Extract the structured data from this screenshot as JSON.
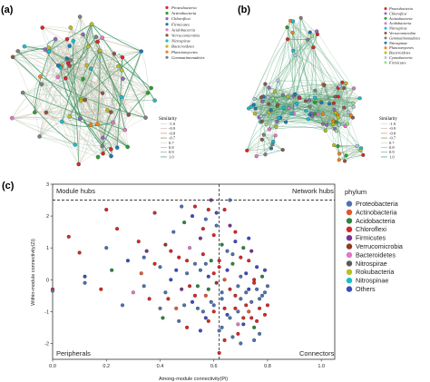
{
  "panels": {
    "a": {
      "label": "(a)"
    },
    "b": {
      "label": "(b)"
    },
    "c": {
      "label": "(c)"
    }
  },
  "network_a": {
    "legend": [
      "Proteobacteria",
      "Actinobacteria",
      "Chloroflexi",
      "Firmicutes",
      "Acidobacteria",
      "Verrucomicrobia",
      "Nitrospirae",
      "Bacteroidetes",
      "Planctomycetes",
      "Gemmatimonadetes"
    ],
    "legend_colors": [
      "#d62728",
      "#2ca02c",
      "#9467bd",
      "#1f77b4",
      "#e377c2",
      "#8c564b",
      "#17becf",
      "#bcbd22",
      "#ff7f0e",
      "#7f7f7f"
    ],
    "similarity_title": "Similarity",
    "similarity_values": [
      "-1.0",
      "-0.9",
      "-0.8",
      "-0.7",
      "0.7",
      "0.8",
      "0.9",
      "1.0"
    ]
  },
  "network_b": {
    "legend": [
      "Proteobacteria",
      "Chloroflexi",
      "Actinobacteria",
      "Acidobacteria",
      "Nitrospirae",
      "Verrucomicrobia",
      "Gemmatimonadetes",
      "Nitrospinae",
      "Planctomycetes",
      "Bacteroidetes",
      "Cyanobacteria",
      "Firmicutes"
    ],
    "legend_colors": [
      "#d62728",
      "#9467bd",
      "#2ca02c",
      "#e377c2",
      "#17becf",
      "#8c564b",
      "#7f7f7f",
      "#1f77b4",
      "#ff7f0e",
      "#bcbd22",
      "#aec7e8",
      "#98df8a"
    ],
    "similarity_title": "Similarity",
    "similarity_values": [
      "-1.0",
      "-0.9",
      "-0.8",
      "-0.7",
      "0.7",
      "0.8",
      "0.9",
      "1.0"
    ]
  },
  "edge_colors": {
    "positive": "#8fbfa2",
    "negative": "#c9b3a0",
    "strong": "#2e8b57"
  },
  "chart_data": {
    "type": "scatter",
    "xlabel": "Among-module connectivity(Pi)",
    "ylabel": "Within-module connectivity(Zi)",
    "xlim": [
      0.0,
      1.05
    ],
    "ylim": [
      -2.5,
      3.0
    ],
    "xticks": [
      "0.0",
      "0.2",
      "0.4",
      "0.6",
      "0.8",
      "1.0"
    ],
    "yticks": [
      "-2",
      "-1",
      "0",
      "1",
      "2",
      "3"
    ],
    "thresholds": {
      "pi": 0.62,
      "zi": 2.5
    },
    "quadrants": {
      "top_left": "Module hubs",
      "top_right": "Network hubs",
      "bottom_left": "Peripherals",
      "bottom_right": "Connectors"
    },
    "legend_title": "phylum",
    "legend_position": "right",
    "series": [
      {
        "name": "Proteobacteria",
        "color": "#4c72b0"
      },
      {
        "name": "Actinobacteria",
        "color": "#e4572e"
      },
      {
        "name": "Acidobacteria",
        "color": "#2e8540"
      },
      {
        "name": "Chloroflexi",
        "color": "#d62728"
      },
      {
        "name": "Firmicutes",
        "color": "#7b3294"
      },
      {
        "name": "Verrucomicrobia",
        "color": "#8c3b1e"
      },
      {
        "name": "Bacteroidetes",
        "color": "#e377c2"
      },
      {
        "name": "Nitrospirae",
        "color": "#5a5a5a"
      },
      {
        "name": "Rokubacteria",
        "color": "#bcbd22"
      },
      {
        "name": "Nitrospinae",
        "color": "#17becf"
      },
      {
        "name": "Others",
        "color": "#3b4cc0"
      }
    ],
    "points": [
      [
        0.0,
        -0.3,
        3
      ],
      [
        0.0,
        -0.35,
        0
      ],
      [
        0.06,
        1.35,
        3
      ],
      [
        0.1,
        0.85,
        3
      ],
      [
        0.12,
        -0.1,
        0
      ],
      [
        0.12,
        0.1,
        10
      ],
      [
        0.18,
        -0.3,
        3
      ],
      [
        0.2,
        2.2,
        3
      ],
      [
        0.2,
        1.0,
        0
      ],
      [
        0.22,
        0.3,
        2
      ],
      [
        0.24,
        1.6,
        3
      ],
      [
        0.26,
        -0.8,
        0
      ],
      [
        0.28,
        0.6,
        10
      ],
      [
        0.3,
        -0.4,
        6
      ],
      [
        0.32,
        1.2,
        3
      ],
      [
        0.33,
        0.2,
        1
      ],
      [
        0.34,
        -0.2,
        0
      ],
      [
        0.35,
        0.9,
        4
      ],
      [
        0.38,
        2.1,
        3
      ],
      [
        0.4,
        0.4,
        0
      ],
      [
        0.41,
        -1.2,
        2
      ],
      [
        0.42,
        1.1,
        5
      ],
      [
        0.43,
        -0.6,
        3
      ],
      [
        0.44,
        0.0,
        10
      ],
      [
        0.45,
        1.5,
        0
      ],
      [
        0.46,
        -0.9,
        1
      ],
      [
        0.47,
        0.7,
        3
      ],
      [
        0.48,
        -0.3,
        4
      ],
      [
        0.49,
        1.8,
        2
      ],
      [
        0.5,
        0.2,
        0
      ],
      [
        0.5,
        -1.5,
        3
      ],
      [
        0.51,
        1.0,
        6
      ],
      [
        0.52,
        -0.7,
        10
      ],
      [
        0.53,
        0.5,
        0
      ],
      [
        0.53,
        2.3,
        3
      ],
      [
        0.54,
        -0.2,
        2
      ],
      [
        0.55,
        1.3,
        4
      ],
      [
        0.56,
        -1.0,
        0
      ],
      [
        0.56,
        0.8,
        3
      ],
      [
        0.57,
        -0.5,
        1
      ],
      [
        0.57,
        1.9,
        0
      ],
      [
        0.58,
        0.1,
        10
      ],
      [
        0.58,
        -1.3,
        3
      ],
      [
        0.59,
        2.5,
        4
      ],
      [
        0.59,
        0.6,
        2
      ],
      [
        0.6,
        -0.8,
        0
      ],
      [
        0.6,
        1.4,
        3
      ],
      [
        0.61,
        -0.1,
        5
      ],
      [
        0.61,
        2.1,
        10
      ],
      [
        0.62,
        -1.6,
        0
      ],
      [
        0.62,
        0.4,
        3
      ],
      [
        0.63,
        1.1,
        2
      ],
      [
        0.63,
        -0.6,
        0
      ],
      [
        0.64,
        2.2,
        3
      ],
      [
        0.64,
        0.0,
        1
      ],
      [
        0.65,
        -1.1,
        10
      ],
      [
        0.65,
        0.9,
        0
      ],
      [
        0.66,
        -0.3,
        3
      ],
      [
        0.66,
        1.7,
        4
      ],
      [
        0.67,
        -1.8,
        0
      ],
      [
        0.67,
        0.5,
        2
      ],
      [
        0.68,
        -0.9,
        3
      ],
      [
        0.68,
        1.2,
        10
      ],
      [
        0.69,
        -0.2,
        0
      ],
      [
        0.69,
        -1.4,
        6
      ],
      [
        0.7,
        0.7,
        3
      ],
      [
        0.7,
        -0.6,
        0
      ],
      [
        0.71,
        1.0,
        2
      ],
      [
        0.71,
        -1.2,
        3
      ],
      [
        0.72,
        0.2,
        10
      ],
      [
        0.72,
        -0.4,
        0
      ],
      [
        0.73,
        -1.0,
        1
      ],
      [
        0.73,
        0.6,
        3
      ],
      [
        0.74,
        -0.7,
        0
      ],
      [
        0.74,
        0.9,
        4
      ],
      [
        0.75,
        -1.5,
        2
      ],
      [
        0.75,
        0.0,
        3
      ],
      [
        0.76,
        -0.3,
        0
      ],
      [
        0.76,
        0.4,
        10
      ],
      [
        0.77,
        -0.9,
        3
      ],
      [
        0.77,
        -1.7,
        0
      ],
      [
        0.78,
        0.1,
        2
      ],
      [
        0.78,
        -0.5,
        0
      ],
      [
        0.79,
        -1.1,
        3
      ],
      [
        0.79,
        0.3,
        10
      ],
      [
        0.8,
        -0.2,
        0
      ],
      [
        0.8,
        -0.8,
        3
      ],
      [
        0.66,
        2.5,
        0
      ],
      [
        0.58,
        2.2,
        3
      ],
      [
        0.52,
        2.0,
        10
      ],
      [
        0.48,
        2.3,
        0
      ],
      [
        0.44,
        0.9,
        3
      ],
      [
        0.4,
        -0.9,
        0
      ],
      [
        0.36,
        -0.6,
        3
      ],
      [
        0.7,
        -2.0,
        0
      ],
      [
        0.64,
        -1.9,
        3
      ],
      [
        0.55,
        -1.6,
        10
      ],
      [
        0.47,
        -1.3,
        0
      ],
      [
        0.62,
        -2.3,
        3
      ],
      [
        0.55,
        0.3,
        0
      ],
      [
        0.6,
        0.2,
        3
      ],
      [
        0.65,
        0.3,
        10
      ],
      [
        0.7,
        0.1,
        0
      ],
      [
        0.75,
        -0.1,
        3
      ],
      [
        0.58,
        -0.3,
        2
      ],
      [
        0.63,
        -0.4,
        0
      ],
      [
        0.68,
        -0.5,
        3
      ],
      [
        0.73,
        -0.3,
        10
      ],
      [
        0.57,
        0.5,
        0
      ],
      [
        0.62,
        0.6,
        3
      ],
      [
        0.67,
        0.8,
        0
      ],
      [
        0.72,
        -0.8,
        3
      ],
      [
        0.77,
        -0.6,
        0
      ],
      [
        0.6,
        -1.0,
        3
      ],
      [
        0.66,
        -1.2,
        0
      ],
      [
        0.71,
        -1.4,
        10
      ],
      [
        0.76,
        -1.3,
        3
      ],
      [
        0.54,
        -0.9,
        0
      ],
      [
        0.5,
        0.6,
        3
      ],
      [
        0.46,
        0.3,
        10
      ],
      [
        0.42,
        -0.4,
        0
      ],
      [
        0.38,
        0.5,
        3
      ],
      [
        0.34,
        0.7,
        0
      ],
      [
        0.56,
        1.6,
        3
      ],
      [
        0.61,
        1.7,
        0
      ],
      [
        0.68,
        1.5,
        3
      ],
      [
        0.73,
        1.3,
        10
      ],
      [
        0.53,
        -0.5,
        3
      ],
      [
        0.59,
        -0.7,
        0
      ],
      [
        0.64,
        -0.9,
        3
      ],
      [
        0.69,
        -1.0,
        0
      ],
      [
        0.74,
        -1.2,
        3
      ],
      [
        0.79,
        -0.4,
        0
      ],
      [
        0.57,
        -1.2,
        10
      ],
      [
        0.63,
        -1.5,
        0
      ],
      [
        0.69,
        -1.7,
        3
      ],
      [
        0.75,
        -1.9,
        0
      ],
      [
        0.51,
        -0.2,
        3
      ],
      [
        0.49,
        -0.8,
        0
      ]
    ]
  }
}
